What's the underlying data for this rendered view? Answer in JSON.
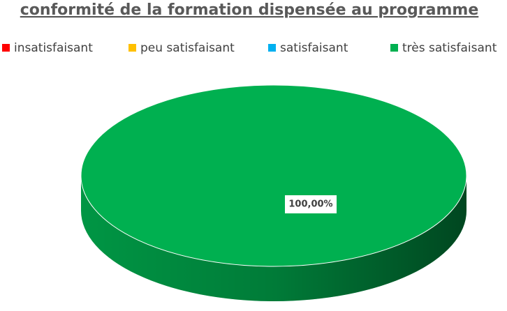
{
  "chart_data": {
    "type": "pie",
    "title": "conformité de la formation dispensée au programme",
    "categories": [
      "insatisfaisant",
      "peu satisfaisant",
      "satisfaisant",
      "très satisfaisant"
    ],
    "values": [
      0,
      0,
      0,
      100
    ],
    "value_labels": [
      null,
      null,
      null,
      "100,00%"
    ],
    "colors": [
      "#ff0000",
      "#ffc000",
      "#00b0f0",
      "#00b050"
    ],
    "legend": "top"
  }
}
